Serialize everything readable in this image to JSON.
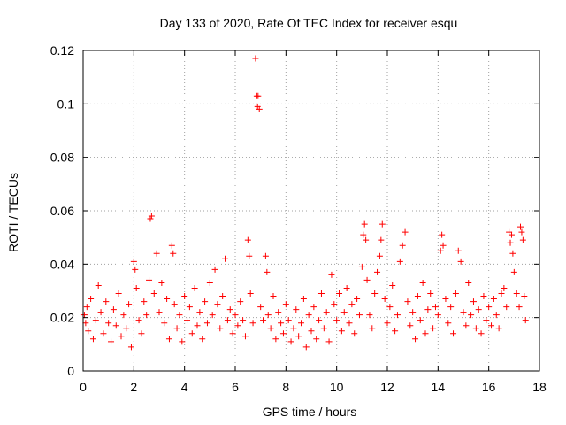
{
  "chart_data": {
    "type": "scatter",
    "title": "Day 133 of 2020, Rate Of TEC Index for receiver esqu",
    "xlabel": "GPS time / hours",
    "ylabel": "ROTI / TECUs",
    "xlim": [
      0,
      18
    ],
    "ylim": [
      0,
      0.12
    ],
    "x_ticks": [
      0,
      2,
      4,
      6,
      8,
      10,
      12,
      14,
      16,
      18
    ],
    "x_tick_labels": [
      "0",
      "2",
      "4",
      "6",
      "8",
      "10",
      "12",
      "14",
      "16",
      "18"
    ],
    "y_ticks": [
      0,
      0.02,
      0.04,
      0.06,
      0.08,
      0.1,
      0.12
    ],
    "y_tick_labels": [
      "0",
      "0.02",
      "0.04",
      "0.06",
      "0.08",
      "0.1",
      "0.12"
    ],
    "grid": true,
    "marker": "plus",
    "marker_color": "#ff0000",
    "series": [
      {
        "name": "ROTI",
        "points": [
          [
            0.05,
            0.021
          ],
          [
            0.1,
            0.018
          ],
          [
            0.15,
            0.024
          ],
          [
            0.2,
            0.015
          ],
          [
            0.3,
            0.027
          ],
          [
            0.4,
            0.012
          ],
          [
            0.5,
            0.019
          ],
          [
            0.6,
            0.032
          ],
          [
            0.7,
            0.022
          ],
          [
            0.8,
            0.014
          ],
          [
            0.9,
            0.026
          ],
          [
            1.0,
            0.018
          ],
          [
            1.1,
            0.011
          ],
          [
            1.2,
            0.023
          ],
          [
            1.3,
            0.017
          ],
          [
            1.4,
            0.029
          ],
          [
            1.5,
            0.013
          ],
          [
            1.6,
            0.021
          ],
          [
            1.7,
            0.016
          ],
          [
            1.8,
            0.025
          ],
          [
            1.9,
            0.009
          ],
          [
            2.0,
            0.041
          ],
          [
            2.05,
            0.038
          ],
          [
            2.1,
            0.031
          ],
          [
            2.2,
            0.019
          ],
          [
            2.3,
            0.014
          ],
          [
            2.4,
            0.026
          ],
          [
            2.5,
            0.021
          ],
          [
            2.6,
            0.034
          ],
          [
            2.65,
            0.057
          ],
          [
            2.7,
            0.058
          ],
          [
            2.8,
            0.029
          ],
          [
            2.9,
            0.044
          ],
          [
            3.0,
            0.022
          ],
          [
            3.1,
            0.033
          ],
          [
            3.2,
            0.018
          ],
          [
            3.3,
            0.027
          ],
          [
            3.4,
            0.012
          ],
          [
            3.5,
            0.047
          ],
          [
            3.55,
            0.044
          ],
          [
            3.6,
            0.025
          ],
          [
            3.7,
            0.016
          ],
          [
            3.8,
            0.021
          ],
          [
            3.9,
            0.011
          ],
          [
            4.0,
            0.028
          ],
          [
            4.1,
            0.019
          ],
          [
            4.2,
            0.024
          ],
          [
            4.3,
            0.014
          ],
          [
            4.4,
            0.031
          ],
          [
            4.5,
            0.017
          ],
          [
            4.6,
            0.022
          ],
          [
            4.7,
            0.012
          ],
          [
            4.8,
            0.026
          ],
          [
            4.9,
            0.018
          ],
          [
            5.0,
            0.033
          ],
          [
            5.1,
            0.021
          ],
          [
            5.2,
            0.038
          ],
          [
            5.3,
            0.025
          ],
          [
            5.4,
            0.016
          ],
          [
            5.5,
            0.028
          ],
          [
            5.6,
            0.042
          ],
          [
            5.7,
            0.019
          ],
          [
            5.8,
            0.023
          ],
          [
            5.9,
            0.014
          ],
          [
            6.0,
            0.021
          ],
          [
            6.1,
            0.017
          ],
          [
            6.2,
            0.026
          ],
          [
            6.3,
            0.019
          ],
          [
            6.4,
            0.013
          ],
          [
            6.5,
            0.049
          ],
          [
            6.55,
            0.043
          ],
          [
            6.6,
            0.029
          ],
          [
            6.7,
            0.018
          ],
          [
            6.8,
            0.117
          ],
          [
            6.85,
            0.103
          ],
          [
            6.88,
            0.099
          ],
          [
            6.9,
            0.103
          ],
          [
            6.95,
            0.098
          ],
          [
            7.0,
            0.024
          ],
          [
            7.1,
            0.019
          ],
          [
            7.2,
            0.043
          ],
          [
            7.25,
            0.037
          ],
          [
            7.3,
            0.021
          ],
          [
            7.4,
            0.016
          ],
          [
            7.5,
            0.028
          ],
          [
            7.6,
            0.012
          ],
          [
            7.7,
            0.022
          ],
          [
            7.8,
            0.018
          ],
          [
            7.9,
            0.014
          ],
          [
            8.0,
            0.025
          ],
          [
            8.1,
            0.019
          ],
          [
            8.2,
            0.011
          ],
          [
            8.3,
            0.016
          ],
          [
            8.4,
            0.023
          ],
          [
            8.5,
            0.013
          ],
          [
            8.6,
            0.018
          ],
          [
            8.7,
            0.027
          ],
          [
            8.8,
            0.009
          ],
          [
            8.9,
            0.021
          ],
          [
            9.0,
            0.015
          ],
          [
            9.1,
            0.024
          ],
          [
            9.2,
            0.012
          ],
          [
            9.3,
            0.019
          ],
          [
            9.4,
            0.029
          ],
          [
            9.5,
            0.016
          ],
          [
            9.6,
            0.022
          ],
          [
            9.7,
            0.011
          ],
          [
            9.8,
            0.036
          ],
          [
            9.9,
            0.025
          ],
          [
            10.0,
            0.019
          ],
          [
            10.1,
            0.029
          ],
          [
            10.2,
            0.015
          ],
          [
            10.3,
            0.022
          ],
          [
            10.4,
            0.031
          ],
          [
            10.5,
            0.018
          ],
          [
            10.6,
            0.025
          ],
          [
            10.7,
            0.014
          ],
          [
            10.8,
            0.027
          ],
          [
            10.9,
            0.021
          ],
          [
            11.0,
            0.039
          ],
          [
            11.05,
            0.051
          ],
          [
            11.1,
            0.055
          ],
          [
            11.15,
            0.049
          ],
          [
            11.2,
            0.034
          ],
          [
            11.3,
            0.021
          ],
          [
            11.4,
            0.016
          ],
          [
            11.5,
            0.029
          ],
          [
            11.6,
            0.037
          ],
          [
            11.7,
            0.043
          ],
          [
            11.75,
            0.049
          ],
          [
            11.8,
            0.055
          ],
          [
            11.9,
            0.027
          ],
          [
            12.0,
            0.018
          ],
          [
            12.1,
            0.024
          ],
          [
            12.2,
            0.032
          ],
          [
            12.3,
            0.015
          ],
          [
            12.4,
            0.021
          ],
          [
            12.5,
            0.041
          ],
          [
            12.6,
            0.047
          ],
          [
            12.7,
            0.052
          ],
          [
            12.8,
            0.026
          ],
          [
            12.9,
            0.017
          ],
          [
            13.0,
            0.022
          ],
          [
            13.1,
            0.012
          ],
          [
            13.2,
            0.028
          ],
          [
            13.3,
            0.019
          ],
          [
            13.4,
            0.033
          ],
          [
            13.5,
            0.014
          ],
          [
            13.6,
            0.023
          ],
          [
            13.7,
            0.029
          ],
          [
            13.8,
            0.016
          ],
          [
            13.9,
            0.024
          ],
          [
            14.0,
            0.021
          ],
          [
            14.1,
            0.045
          ],
          [
            14.15,
            0.051
          ],
          [
            14.2,
            0.047
          ],
          [
            14.3,
            0.027
          ],
          [
            14.4,
            0.018
          ],
          [
            14.5,
            0.024
          ],
          [
            14.6,
            0.014
          ],
          [
            14.7,
            0.029
          ],
          [
            14.8,
            0.045
          ],
          [
            14.9,
            0.041
          ],
          [
            15.0,
            0.022
          ],
          [
            15.1,
            0.017
          ],
          [
            15.2,
            0.033
          ],
          [
            15.3,
            0.021
          ],
          [
            15.4,
            0.026
          ],
          [
            15.5,
            0.016
          ],
          [
            15.6,
            0.023
          ],
          [
            15.7,
            0.014
          ],
          [
            15.8,
            0.028
          ],
          [
            15.9,
            0.019
          ],
          [
            16.0,
            0.024
          ],
          [
            16.1,
            0.017
          ],
          [
            16.2,
            0.027
          ],
          [
            16.3,
            0.021
          ],
          [
            16.4,
            0.016
          ],
          [
            16.5,
            0.029
          ],
          [
            16.6,
            0.031
          ],
          [
            16.7,
            0.024
          ],
          [
            16.8,
            0.052
          ],
          [
            16.85,
            0.048
          ],
          [
            16.9,
            0.051
          ],
          [
            16.95,
            0.044
          ],
          [
            17.0,
            0.037
          ],
          [
            17.1,
            0.029
          ],
          [
            17.2,
            0.024
          ],
          [
            17.25,
            0.054
          ],
          [
            17.3,
            0.052
          ],
          [
            17.35,
            0.049
          ],
          [
            17.4,
            0.028
          ],
          [
            17.45,
            0.019
          ]
        ]
      }
    ]
  }
}
